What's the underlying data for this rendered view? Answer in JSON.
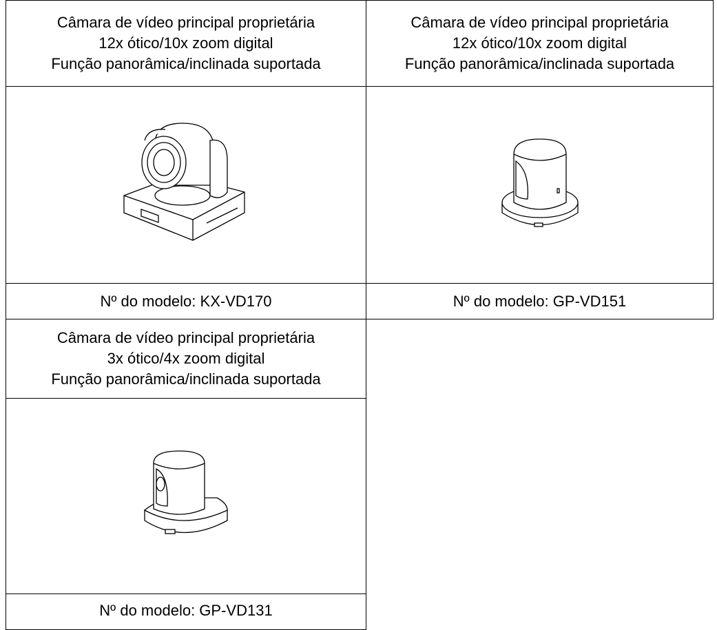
{
  "products": [
    {
      "description": [
        "Câmara de vídeo principal proprietária",
        "12x ótico/10x zoom digital",
        "Função panorâmica/inclinada suportada"
      ],
      "model": "Nº do modelo: KX-VD170"
    },
    {
      "description": [
        "Câmara de vídeo principal proprietária",
        "12x ótico/10x zoom digital",
        "Função panorâmica/inclinada suportada"
      ],
      "model": "Nº do modelo: GP-VD151"
    },
    {
      "description": [
        "Câmara de vídeo principal proprietária",
        "3x ótico/4x zoom digital",
        "Função panorâmica/inclinada suportada"
      ],
      "model": "Nº do modelo: GP-VD131"
    }
  ]
}
